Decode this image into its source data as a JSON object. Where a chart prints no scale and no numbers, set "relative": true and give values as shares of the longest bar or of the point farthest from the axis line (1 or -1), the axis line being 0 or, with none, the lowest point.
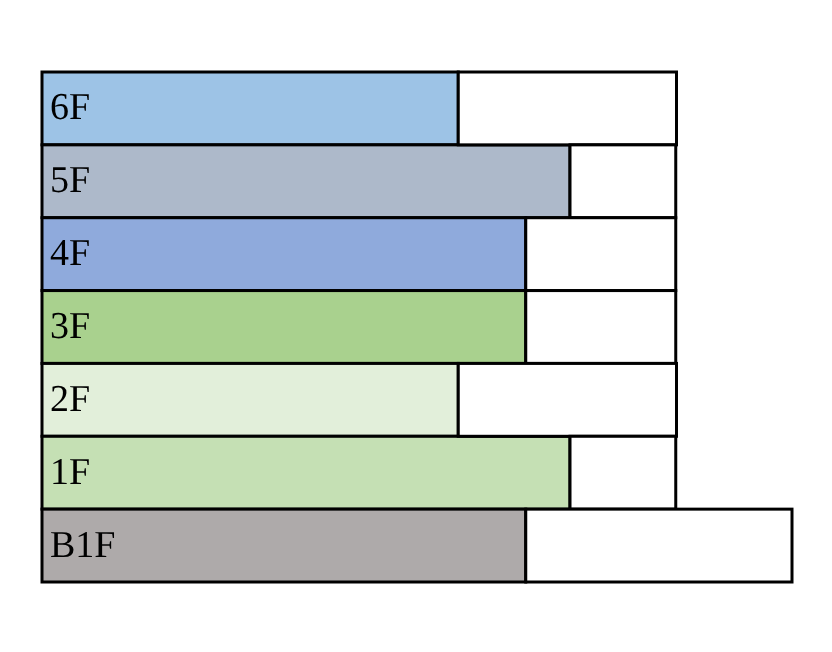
{
  "chart_data": {
    "type": "bar",
    "orientation": "horizontal",
    "stacked": true,
    "relative": true,
    "categories": [
      "6F",
      "5F",
      "4F",
      "3F",
      "2F",
      "1F",
      "B1F"
    ],
    "series": [
      {
        "colors": [
          "#9dc3e6",
          "#adb9ca",
          "#8faadc",
          "#a9d18e",
          "#e2efda",
          "#c5e0b4",
          "#aeaaaa"
        ],
        "values": [
          0.555,
          0.704,
          0.645,
          0.645,
          0.555,
          0.704,
          0.645
        ]
      },
      {
        "color": "#ffffff",
        "values": [
          0.291,
          0.141,
          0.2,
          0.2,
          0.291,
          0.141,
          0.355
        ]
      }
    ]
  }
}
